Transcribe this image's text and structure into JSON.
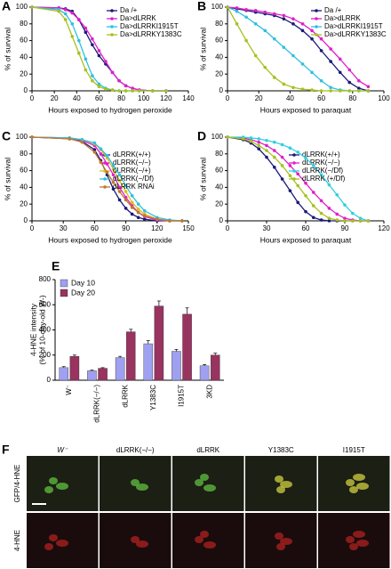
{
  "chart_data": [
    {
      "type": "line",
      "panel": "A",
      "xlabel": "Hours exposed to hydrogen peroxide",
      "ylabel": "% of survival",
      "x": [
        0,
        24,
        30,
        36,
        42,
        48,
        54,
        60,
        66,
        72,
        78,
        84,
        90,
        96,
        108,
        120
      ],
      "xlim": [
        0,
        140
      ],
      "xticks": [
        0,
        20,
        40,
        60,
        80,
        100,
        120,
        140
      ],
      "ylim": [
        0,
        100
      ],
      "yticks": [
        0,
        20,
        40,
        60,
        80,
        100
      ],
      "series": [
        {
          "name": "Da /+",
          "color": "#1a1a7a",
          "values": [
            100,
            99,
            98,
            95,
            85,
            70,
            55,
            42,
            32,
            22,
            12,
            6,
            3,
            1,
            0,
            0
          ]
        },
        {
          "name": "Da>dLRRK",
          "color": "#e020c8",
          "values": [
            100,
            99,
            97,
            93,
            85,
            75,
            62,
            48,
            35,
            22,
            12,
            6,
            3,
            1,
            0,
            0
          ]
        },
        {
          "name": "Da>dLRRKI1915T",
          "color": "#30c0e0",
          "values": [
            100,
            97,
            92,
            80,
            60,
            38,
            18,
            8,
            3,
            1,
            0,
            0,
            0,
            0,
            0,
            0
          ]
        },
        {
          "name": "Da>dLRRKY1383C",
          "color": "#a8c020",
          "values": [
            100,
            95,
            85,
            65,
            45,
            25,
            12,
            5,
            2,
            1,
            0,
            0,
            0,
            0,
            0,
            0
          ]
        }
      ]
    },
    {
      "type": "line",
      "panel": "B",
      "xlabel": "Hours exposed to paraquat",
      "ylabel": "% of survival",
      "x": [
        0,
        6,
        12,
        18,
        24,
        30,
        36,
        42,
        48,
        54,
        60,
        66,
        72,
        78,
        84,
        90
      ],
      "xlim": [
        0,
        100
      ],
      "xticks": [
        0,
        20,
        40,
        60,
        80,
        100
      ],
      "ylim": [
        0,
        100
      ],
      "yticks": [
        0,
        20,
        40,
        60,
        80,
        100
      ],
      "series": [
        {
          "name": "Da /+",
          "color": "#1a1a7a",
          "values": [
            100,
            98,
            96,
            94,
            92,
            90,
            86,
            80,
            72,
            62,
            48,
            35,
            22,
            10,
            3,
            0
          ]
        },
        {
          "name": "Da>dLRRK",
          "color": "#e020c8",
          "values": [
            100,
            99,
            97,
            96,
            94,
            92,
            90,
            86,
            80,
            72,
            62,
            50,
            38,
            25,
            12,
            5
          ]
        },
        {
          "name": "Da>dLRRKI1915T",
          "color": "#30c0e0",
          "values": [
            100,
            95,
            88,
            80,
            72,
            62,
            52,
            42,
            32,
            22,
            12,
            4,
            1,
            0,
            0,
            0
          ]
        },
        {
          "name": "Da>dLRRKY1383C",
          "color": "#a8c020",
          "values": [
            100,
            80,
            60,
            42,
            28,
            16,
            8,
            4,
            2,
            1,
            0,
            0,
            0,
            0,
            0,
            0
          ]
        }
      ]
    },
    {
      "type": "line",
      "panel": "C",
      "xlabel": "Hours exposed to hydrogen peroxide",
      "ylabel": "% of survival",
      "x": [
        0,
        36,
        48,
        60,
        66,
        72,
        78,
        84,
        90,
        96,
        102,
        108,
        120,
        132,
        144
      ],
      "xlim": [
        0,
        150
      ],
      "xticks": [
        0,
        30,
        60,
        90,
        120,
        150
      ],
      "ylim": [
        0,
        100
      ],
      "yticks": [
        0,
        20,
        40,
        60,
        80,
        100
      ],
      "series": [
        {
          "name": "dLRRK(+/+)",
          "color": "#1a1a7a",
          "values": [
            100,
            98,
            95,
            85,
            72,
            55,
            38,
            25,
            15,
            8,
            4,
            2,
            0,
            0,
            0
          ]
        },
        {
          "name": "dLRRK(−/−)",
          "color": "#e020c8",
          "values": [
            100,
            99,
            96,
            90,
            80,
            68,
            55,
            40,
            28,
            18,
            10,
            5,
            1,
            0,
            0
          ]
        },
        {
          "name": "dLRRK(−/+)",
          "color": "#d8c020",
          "values": [
            100,
            99,
            97,
            92,
            85,
            75,
            62,
            48,
            35,
            22,
            14,
            8,
            2,
            0,
            0
          ]
        },
        {
          "name": "dLRRK(−/Df)",
          "color": "#30c0e0",
          "values": [
            100,
            99,
            97,
            93,
            86,
            78,
            66,
            55,
            42,
            30,
            20,
            12,
            4,
            1,
            0
          ]
        },
        {
          "name": "dLRRK RNAi",
          "color": "#c07830",
          "values": [
            100,
            98,
            94,
            82,
            70,
            58,
            46,
            35,
            25,
            16,
            10,
            6,
            2,
            0,
            0
          ]
        }
      ]
    },
    {
      "type": "line",
      "panel": "D",
      "xlabel": "Hours exposed to paraquat",
      "ylabel": "% of survival",
      "x": [
        0,
        12,
        18,
        24,
        30,
        36,
        42,
        48,
        54,
        60,
        66,
        72,
        78,
        84,
        90,
        96,
        102,
        108
      ],
      "xlim": [
        0,
        120
      ],
      "xticks": [
        0,
        30,
        60,
        90,
        120
      ],
      "ylim": [
        0,
        100
      ],
      "yticks": [
        0,
        20,
        40,
        60,
        80,
        100
      ],
      "series": [
        {
          "name": "dLRRK(+/+)",
          "color": "#1a1a7a",
          "values": [
            100,
            97,
            93,
            86,
            76,
            64,
            50,
            36,
            22,
            11,
            4,
            1,
            0,
            0,
            0,
            0,
            0,
            0
          ]
        },
        {
          "name": "dLRRK(−/−)",
          "color": "#e020c8",
          "values": [
            100,
            99,
            97,
            94,
            90,
            84,
            76,
            66,
            56,
            45,
            34,
            24,
            15,
            8,
            3,
            1,
            0,
            0
          ]
        },
        {
          "name": "dLRRK(−/Df)",
          "color": "#30d0e0",
          "values": [
            100,
            100,
            99,
            98,
            96,
            94,
            91,
            87,
            82,
            75,
            66,
            55,
            43,
            31,
            19,
            9,
            3,
            0
          ]
        },
        {
          "name": "dLRRK (+/Df)",
          "color": "#a8c020",
          "values": [
            100,
            98,
            95,
            90,
            84,
            76,
            66,
            54,
            42,
            30,
            18,
            9,
            3,
            1,
            0,
            0,
            0,
            0
          ]
        }
      ]
    },
    {
      "type": "bar",
      "panel": "E",
      "ylabel": [
        "4-HNE intensity",
        "(% of 10-day-old W-)"
      ],
      "categories": [
        "W⁻",
        "dLRRK(−/−)",
        "dLRRK",
        "Y1383C",
        "I1915T",
        "3KD"
      ],
      "ylim": [
        0,
        800
      ],
      "yticks": [
        0,
        200,
        400,
        600,
        800
      ],
      "series": [
        {
          "name": "Day 10",
          "color": "#a0a0f0",
          "values": [
            100,
            75,
            180,
            290,
            230,
            115
          ],
          "errors": [
            8,
            5,
            10,
            25,
            15,
            10
          ]
        },
        {
          "name": "Day 20",
          "color": "#993360",
          "values": [
            190,
            95,
            385,
            590,
            525,
            200
          ],
          "errors": [
            10,
            5,
            20,
            40,
            50,
            15
          ]
        }
      ]
    }
  ],
  "panel_f": {
    "panel": "F",
    "columns": [
      "W⁻",
      "dLRRK(−/−)",
      "dLRRK",
      "Y1383C",
      "I1915T"
    ],
    "rows": [
      "GFP/4-HNE",
      "4-HNE"
    ]
  }
}
